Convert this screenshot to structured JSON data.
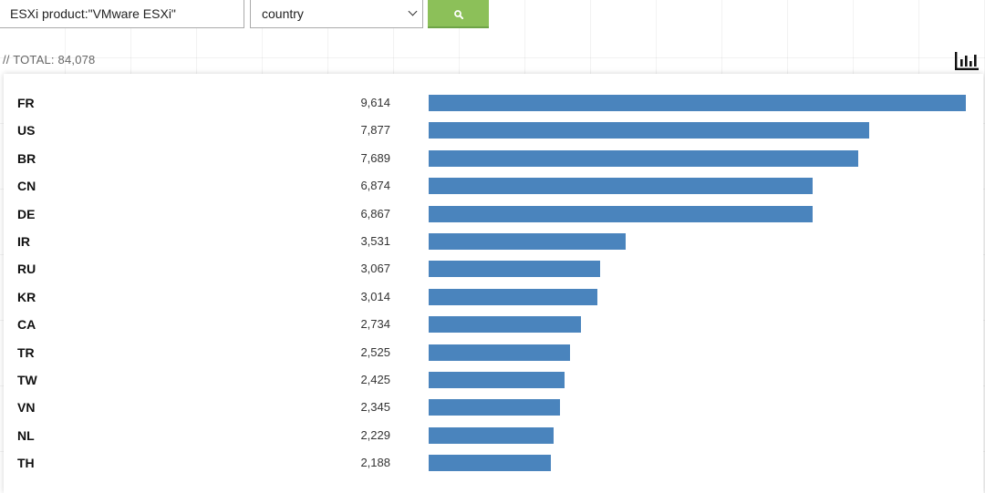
{
  "search": {
    "query": "ESXi product:\"VMware ESXi\"",
    "facet": "country",
    "button_icon": "search-icon"
  },
  "summary": {
    "total_label": "// TOTAL: 84,078"
  },
  "chart_toggle_icon": "bar-chart-icon",
  "colors": {
    "bar": "#4a84bd",
    "button": "#8cc059"
  },
  "chart_data": {
    "type": "bar",
    "orientation": "horizontal",
    "categories": [
      "FR",
      "US",
      "BR",
      "CN",
      "DE",
      "IR",
      "RU",
      "KR",
      "CA",
      "TR",
      "TW",
      "VN",
      "NL",
      "TH"
    ],
    "value_labels": [
      "9,614",
      "7,877",
      "7,689",
      "6,874",
      "6,867",
      "3,531",
      "3,067",
      "3,014",
      "2,734",
      "2,525",
      "2,425",
      "2,345",
      "2,229",
      "2,188"
    ],
    "values": [
      9614,
      7877,
      7689,
      6874,
      6867,
      3531,
      3067,
      3014,
      2734,
      2525,
      2425,
      2345,
      2229,
      2188
    ]
  }
}
